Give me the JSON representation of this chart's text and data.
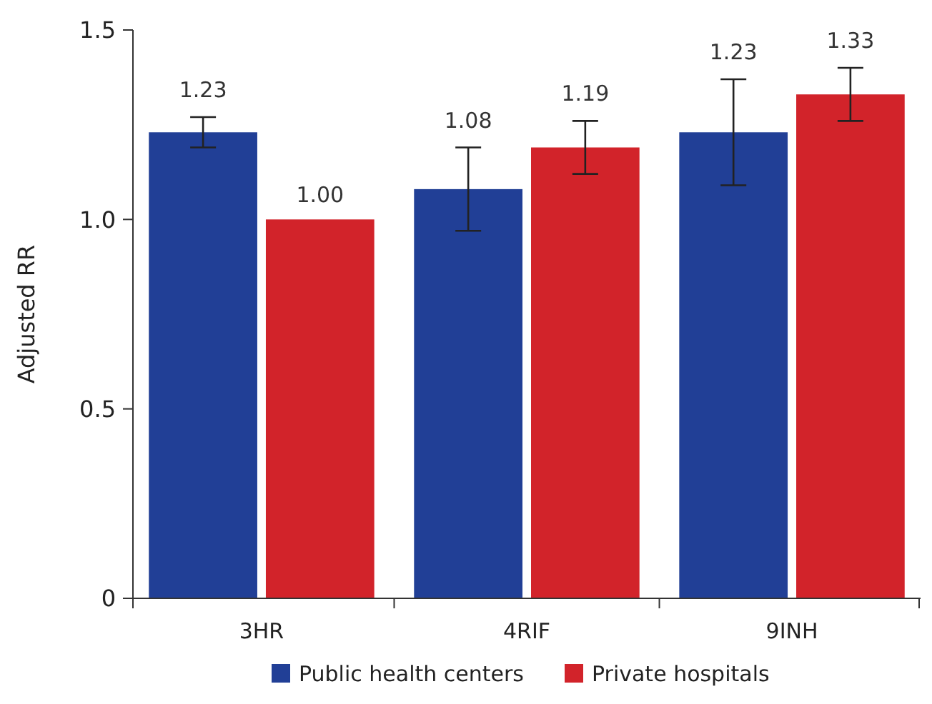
{
  "chart_data": {
    "type": "bar",
    "ylabel": "Adjusted RR",
    "categories": [
      "3HR",
      "4RIF",
      "9INH"
    ],
    "series": [
      {
        "name": "Public health centers",
        "color": "#213f96",
        "values": [
          1.23,
          1.08,
          1.23
        ],
        "value_labels": [
          "1.23",
          "1.08",
          "1.23"
        ],
        "errors": [
          [
            1.19,
            1.27
          ],
          [
            0.97,
            1.19
          ],
          [
            1.09,
            1.37
          ]
        ]
      },
      {
        "name": "Private hospitals",
        "color": "#d2232a",
        "values": [
          1.0,
          1.19,
          1.33
        ],
        "value_labels": [
          "1.00",
          "1.19",
          "1.33"
        ],
        "errors": [
          null,
          [
            1.12,
            1.26
          ],
          [
            1.26,
            1.4
          ]
        ]
      }
    ],
    "ylim": [
      0,
      1.5
    ],
    "yticks": [
      {
        "value": 0,
        "label": "0"
      },
      {
        "value": 0.5,
        "label": "0.5"
      },
      {
        "value": 1,
        "label": "1.0"
      },
      {
        "value": 1.5,
        "label": "1.5"
      }
    ],
    "grid": false,
    "legend": "bottom"
  }
}
